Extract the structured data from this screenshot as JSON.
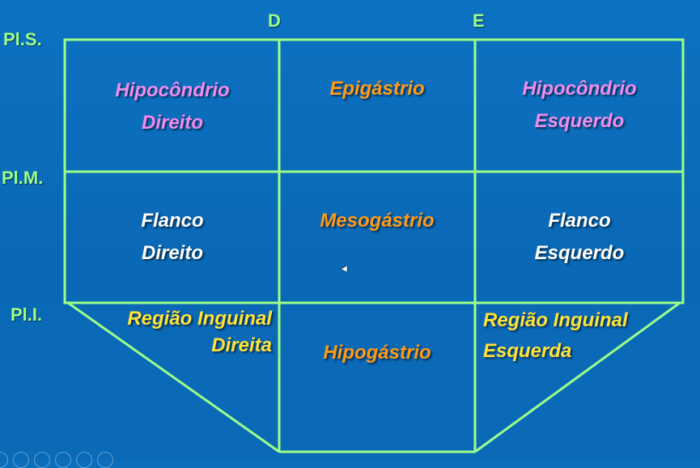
{
  "side_labels": {
    "right": "D",
    "left": "E"
  },
  "planes": {
    "superior": "Pl.S.",
    "medial": "Pl.M.",
    "inferior": "Pl.I."
  },
  "regions": {
    "right_hypochondrium": {
      "line1": "Hipocôndrio",
      "line2": "Direito"
    },
    "epigastrium": {
      "line1": "Epigástrio"
    },
    "left_hypochondrium": {
      "line1": "Hipocôndrio",
      "line2": "Esquerdo"
    },
    "right_flank": {
      "line1": "Flanco",
      "line2": "Direito"
    },
    "mesogastrium": {
      "line1": "Mesogástrio"
    },
    "left_flank": {
      "line1": "Flanco",
      "line2": "Esquerdo"
    },
    "right_inguinal": {
      "line1": "Região Inguinal",
      "line2": "Direita"
    },
    "hypogastrium": {
      "line1": "Hipogástrio"
    },
    "left_inguinal": {
      "line1": "Região Inguinal",
      "line2": "Esquerda"
    }
  },
  "colors": {
    "background": "#0b6fbd",
    "lines": "#9dff8a",
    "hypochondrium_text": "#f08cf0",
    "gastric_text": "#ff9a1a",
    "flank_text": "#ffffff",
    "inguinal_text": "#ffe23a"
  },
  "presenter_controls": [
    "previous-icon",
    "next-icon",
    "pen-icon",
    "grid-icon",
    "zoom-icon",
    "more-icon"
  ]
}
